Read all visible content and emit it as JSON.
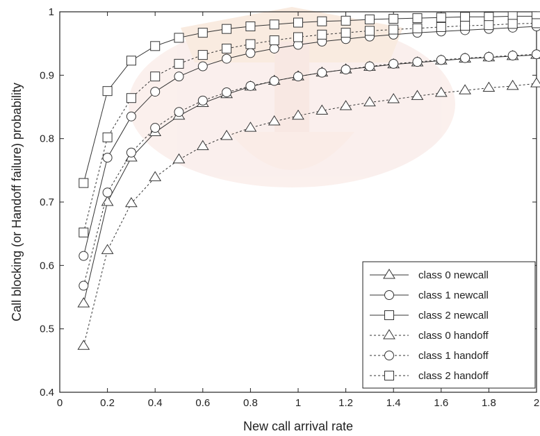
{
  "chart_data": {
    "type": "line",
    "title": "",
    "xlabel": "New call arrival rate",
    "ylabel": "Call blocking (or Handoff failure) probability",
    "xlim": [
      0,
      2
    ],
    "ylim": [
      0.4,
      1
    ],
    "xticks": [
      0,
      0.2,
      0.4,
      0.6,
      0.8,
      1,
      1.2,
      1.4,
      1.6,
      1.8,
      2
    ],
    "yticks": [
      0.4,
      0.5,
      0.6,
      0.7,
      0.8,
      0.9,
      1
    ],
    "xtick_labels": [
      "0",
      "0.2",
      "0.4",
      "0.6",
      "0.8",
      "1",
      "1.2",
      "1.4",
      "1.6",
      "1.8",
      "2"
    ],
    "ytick_labels": [
      "0.4",
      "0.5",
      "0.6",
      "0.7",
      "0.8",
      "0.9",
      "1"
    ],
    "grid": false,
    "legend_position": "lower-right",
    "x": [
      0.1,
      0.2,
      0.3,
      0.4,
      0.5,
      0.6,
      0.7,
      0.8,
      0.9,
      1.0,
      1.1,
      1.2,
      1.3,
      1.4,
      1.5,
      1.6,
      1.7,
      1.8,
      1.9,
      2.0
    ],
    "series": [
      {
        "name": "class 0 newcall",
        "marker": "triangle",
        "line": "solid",
        "values": [
          0.54,
          0.7,
          0.77,
          0.81,
          0.836,
          0.856,
          0.87,
          0.882,
          0.891,
          0.898,
          0.904,
          0.909,
          0.913,
          0.917,
          0.92,
          0.923,
          0.926,
          0.928,
          0.93,
          0.932
        ]
      },
      {
        "name": "class 1 newcall",
        "marker": "circle",
        "line": "solid",
        "values": [
          0.615,
          0.77,
          0.835,
          0.874,
          0.898,
          0.914,
          0.926,
          0.935,
          0.942,
          0.948,
          0.953,
          0.957,
          0.961,
          0.964,
          0.967,
          0.969,
          0.971,
          0.973,
          0.975,
          0.977
        ]
      },
      {
        "name": "class 2 newcall",
        "marker": "square",
        "line": "solid",
        "values": [
          0.73,
          0.875,
          0.923,
          0.946,
          0.959,
          0.967,
          0.973,
          0.977,
          0.98,
          0.983,
          0.985,
          0.986,
          0.988,
          0.989,
          0.99,
          0.991,
          0.992,
          0.992,
          0.993,
          0.993
        ]
      },
      {
        "name": "class 0 handoff",
        "marker": "triangle",
        "line": "dashed",
        "values": [
          0.473,
          0.624,
          0.698,
          0.739,
          0.767,
          0.788,
          0.804,
          0.817,
          0.827,
          0.836,
          0.844,
          0.851,
          0.857,
          0.862,
          0.867,
          0.872,
          0.876,
          0.88,
          0.883,
          0.887
        ]
      },
      {
        "name": "class 1 handoff",
        "marker": "circle",
        "line": "dashed",
        "values": [
          0.568,
          0.715,
          0.778,
          0.817,
          0.842,
          0.86,
          0.873,
          0.883,
          0.891,
          0.898,
          0.904,
          0.909,
          0.914,
          0.918,
          0.921,
          0.924,
          0.927,
          0.929,
          0.931,
          0.933
        ]
      },
      {
        "name": "class 2 handoff",
        "marker": "square",
        "line": "dashed",
        "values": [
          0.652,
          0.802,
          0.864,
          0.898,
          0.918,
          0.932,
          0.942,
          0.949,
          0.955,
          0.96,
          0.964,
          0.967,
          0.97,
          0.972,
          0.974,
          0.976,
          0.978,
          0.979,
          0.981,
          0.982
        ]
      }
    ],
    "colors": {
      "line": "#333333",
      "axis": "#222222",
      "watermark": "#e8c0b8"
    }
  }
}
